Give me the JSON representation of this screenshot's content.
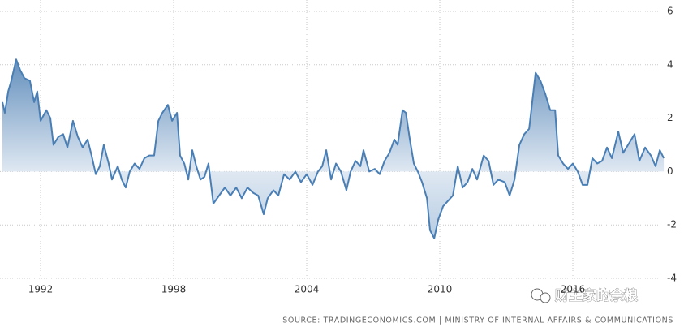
{
  "chart_data": {
    "type": "area",
    "x": [
      1990.28,
      1990.39,
      1990.54,
      1990.68,
      1990.9,
      1991.08,
      1991.27,
      1991.52,
      1991.71,
      1991.85,
      1992.0,
      1992.26,
      1992.44,
      1992.58,
      1992.8,
      1993.02,
      1993.21,
      1993.46,
      1993.68,
      1993.9,
      1994.12,
      1994.3,
      1994.49,
      1994.67,
      1994.85,
      1995.07,
      1995.22,
      1995.48,
      1995.66,
      1995.84,
      1996.02,
      1996.24,
      1996.46,
      1996.68,
      1996.9,
      1997.12,
      1997.31,
      1997.49,
      1997.74,
      1997.93,
      1998.15,
      1998.29,
      1998.48,
      1998.66,
      1998.84,
      1999.02,
      1999.21,
      1999.39,
      1999.57,
      1999.79,
      2000.05,
      2000.31,
      2000.56,
      2000.82,
      2001.07,
      2001.33,
      2001.59,
      2001.81,
      2002.06,
      2002.24,
      2002.5,
      2002.72,
      2002.98,
      2003.23,
      2003.49,
      2003.74,
      2004.0,
      2004.26,
      2004.51,
      2004.7,
      2004.88,
      2005.1,
      2005.32,
      2005.54,
      2005.79,
      2005.98,
      2006.2,
      2006.42,
      2006.56,
      2006.82,
      2007.07,
      2007.29,
      2007.51,
      2007.73,
      2007.95,
      2008.1,
      2008.32,
      2008.47,
      2008.65,
      2008.83,
      2009.01,
      2009.2,
      2009.42,
      2009.56,
      2009.75,
      2009.93,
      2010.15,
      2010.37,
      2010.59,
      2010.81,
      2011.03,
      2011.25,
      2011.47,
      2011.68,
      2011.98,
      2012.2,
      2012.42,
      2012.64,
      2012.93,
      2013.15,
      2013.37,
      2013.59,
      2013.81,
      2014.03,
      2014.32,
      2014.54,
      2014.76,
      2014.98,
      2015.2,
      2015.34,
      2015.56,
      2015.78,
      2016.0,
      2016.22,
      2016.44,
      2016.66,
      2016.88,
      2017.1,
      2017.32,
      2017.54,
      2017.76,
      2018.05,
      2018.27,
      2018.49,
      2018.78,
      2019.0,
      2019.26,
      2019.52,
      2019.73,
      2019.92,
      2020.1
    ],
    "series": [
      {
        "color": "#4a7fb5",
        "values": [
          2.6,
          2.2,
          3.0,
          3.4,
          4.2,
          3.8,
          3.5,
          3.4,
          2.6,
          3.0,
          1.9,
          2.3,
          2.0,
          1.0,
          1.3,
          1.4,
          0.9,
          1.9,
          1.3,
          0.9,
          1.2,
          0.6,
          -0.1,
          0.2,
          1.0,
          0.3,
          -0.3,
          0.2,
          -0.3,
          -0.6,
          0.0,
          0.3,
          0.1,
          0.5,
          0.6,
          0.6,
          1.9,
          2.2,
          2.5,
          1.9,
          2.2,
          0.6,
          0.3,
          -0.3,
          0.8,
          0.2,
          -0.3,
          -0.2,
          0.3,
          -1.2,
          -0.9,
          -0.6,
          -0.9,
          -0.6,
          -1.0,
          -0.6,
          -0.8,
          -0.9,
          -1.6,
          -1.0,
          -0.7,
          -0.9,
          -0.1,
          -0.3,
          0.0,
          -0.4,
          -0.1,
          -0.5,
          0.0,
          0.2,
          0.8,
          -0.3,
          0.3,
          0.0,
          -0.7,
          0.0,
          0.4,
          0.2,
          0.8,
          0.0,
          0.1,
          -0.1,
          0.4,
          0.7,
          1.2,
          1.0,
          2.3,
          2.2,
          1.2,
          0.3,
          0.0,
          -0.4,
          -1.0,
          -2.2,
          -2.5,
          -1.8,
          -1.3,
          -1.1,
          -0.9,
          0.2,
          -0.6,
          -0.4,
          0.1,
          -0.3,
          0.6,
          0.4,
          -0.5,
          -0.3,
          -0.4,
          -0.9,
          -0.3,
          1.0,
          1.4,
          1.6,
          3.7,
          3.4,
          2.9,
          2.3,
          2.3,
          0.6,
          0.3,
          0.1,
          0.3,
          0.0,
          -0.5,
          -0.5,
          0.5,
          0.3,
          0.4,
          0.9,
          0.5,
          1.5,
          0.7,
          1.0,
          1.4,
          0.4,
          0.9,
          0.6,
          0.2,
          0.8,
          0.5
        ]
      }
    ],
    "xlim": [
      1990.17,
      2020.17
    ],
    "xticks": [
      1992,
      1998,
      2004,
      2010,
      2016
    ],
    "ylim": [
      -4,
      6
    ],
    "yticks": [
      -4,
      -2,
      0,
      2,
      4,
      6
    ],
    "grid": true,
    "source": "SOURCE: TRADINGECONOMICS.COM | MINISTRY OF INTERNAL AFFAIRS & COMMUNICATIONS",
    "watermark": "财主家的余粮"
  }
}
